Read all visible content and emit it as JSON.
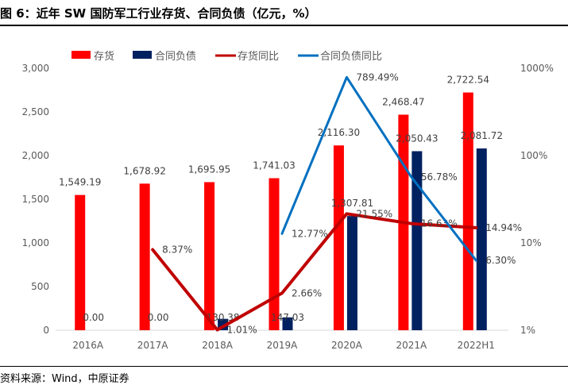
{
  "title": "图 6：近年 SW 国防军工行业存货、合同负债（亿元，%）",
  "source": "资料来源：Wind，中原证券",
  "chart_data": {
    "type": "bar",
    "categories": [
      "2016A",
      "2017A",
      "2018A",
      "2019A",
      "2020A",
      "2021A",
      "2022H1"
    ],
    "series": [
      {
        "name": "存货",
        "kind": "bar",
        "axis": "left",
        "color": "#ff0000",
        "values": [
          1549.19,
          1678.92,
          1695.95,
          1741.03,
          2116.3,
          2468.47,
          2722.54
        ],
        "labels": [
          "1,549.19",
          "1,678.92",
          "1,695.95",
          "1,741.03",
          "2,116.30",
          "2,468.47",
          "2,722.54"
        ]
      },
      {
        "name": "合同负债",
        "kind": "bar",
        "axis": "left",
        "color": "#002060",
        "values": [
          0,
          0,
          130.38,
          147.03,
          1307.81,
          2050.43,
          2081.72
        ],
        "labels": [
          "0.00",
          "0.00",
          "130.38",
          "147.03",
          "1,307.81",
          "2,050.43",
          "2,081.72"
        ]
      },
      {
        "name": "存货同比",
        "kind": "line",
        "axis": "right",
        "color": "#c00000",
        "values": [
          null,
          8.37,
          1.01,
          2.66,
          21.55,
          16.63,
          14.94
        ],
        "labels": [
          "",
          "8.37%",
          "1.01%",
          "2.66%",
          "21.55%",
          "16.63%",
          "14.94%"
        ]
      },
      {
        "name": "合同负债同比",
        "kind": "line",
        "axis": "right",
        "color": "#0070c0",
        "values": [
          null,
          null,
          null,
          12.77,
          789.49,
          56.78,
          6.3
        ],
        "labels": [
          "",
          "",
          "",
          "12.77%",
          "789.49%",
          "56.78%",
          "6.30%"
        ]
      }
    ],
    "y_left": {
      "min": 0,
      "max": 3000,
      "ticks": [
        0,
        500,
        1000,
        1500,
        2000,
        2500,
        3000
      ],
      "tick_labels": [
        "0",
        "500",
        "1,000",
        "1,500",
        "2,000",
        "2,500",
        "3,000"
      ]
    },
    "y_right": {
      "scale": "log",
      "min": 1,
      "max": 1000,
      "ticks": [
        1,
        10,
        100,
        1000
      ],
      "tick_labels": [
        "1%",
        "10%",
        "100%",
        "1000%"
      ]
    },
    "legend": "top",
    "colors": {
      "axis": "#d9d9d9",
      "text": "#595959",
      "label": "#404040"
    }
  }
}
